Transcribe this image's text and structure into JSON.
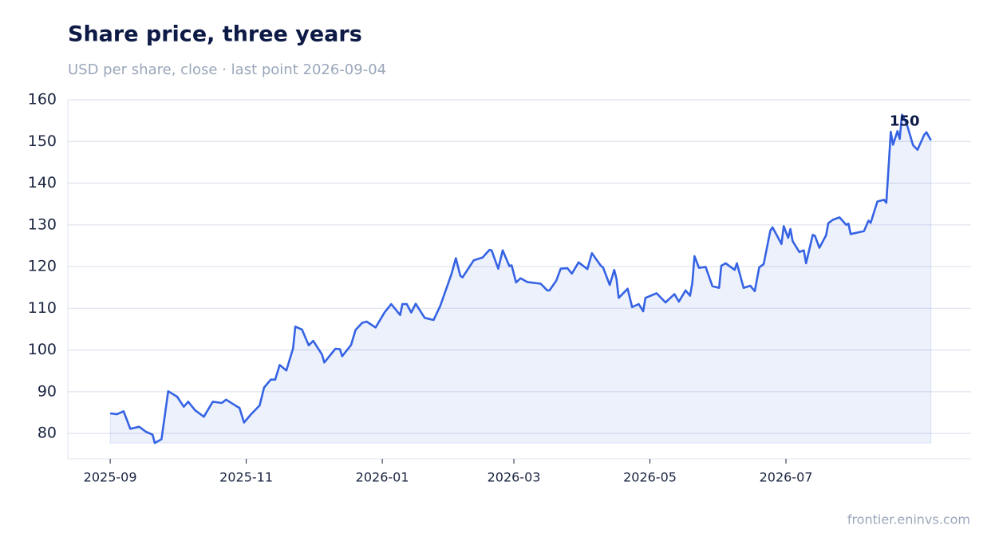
{
  "chart_data": {
    "type": "line",
    "title": "Share price, three years",
    "subtitle": "USD per share, close · last point 2026-09-04",
    "footer": "frontier.eninvs.com",
    "x": [
      "2025-09-01",
      "2025-09-04",
      "2025-09-07",
      "2025-09-10",
      "2025-09-14",
      "2025-09-17",
      "2025-09-20",
      "2025-09-21",
      "2025-09-24",
      "2025-09-27",
      "2025-10-01",
      "2025-10-04",
      "2025-10-06",
      "2025-10-09",
      "2025-10-13",
      "2025-10-17",
      "2025-10-21",
      "2025-10-23",
      "2025-10-28",
      "2025-10-29",
      "2025-10-31",
      "2025-11-03",
      "2025-11-07",
      "2025-11-09",
      "2025-11-12",
      "2025-11-14",
      "2025-11-16",
      "2025-11-19",
      "2025-11-22",
      "2025-11-23",
      "2025-11-26",
      "2025-11-29",
      "2025-12-01",
      "2025-12-05",
      "2025-12-06",
      "2025-12-11",
      "2025-12-13",
      "2025-12-14",
      "2025-12-18",
      "2025-12-20",
      "2025-12-23",
      "2025-12-25",
      "2025-12-29",
      "2026-01-02",
      "2026-01-05",
      "2026-01-09",
      "2026-01-10",
      "2026-01-12",
      "2026-01-14",
      "2026-01-16",
      "2026-01-20",
      "2026-01-24",
      "2026-01-27",
      "2026-02-01",
      "2026-02-03",
      "2026-02-05",
      "2026-02-06",
      "2026-02-11",
      "2026-02-15",
      "2026-02-18",
      "2026-02-19",
      "2026-02-22",
      "2026-02-24",
      "2026-02-27",
      "2026-02-28",
      "2026-03-02",
      "2026-03-04",
      "2026-03-07",
      "2026-03-13",
      "2026-03-16",
      "2026-03-17",
      "2026-03-20",
      "2026-03-22",
      "2026-03-25",
      "2026-03-27",
      "2026-03-30",
      "2026-04-03",
      "2026-04-05",
      "2026-04-09",
      "2026-04-10",
      "2026-04-13",
      "2026-04-15",
      "2026-04-16",
      "2026-04-17",
      "2026-04-21",
      "2026-04-23",
      "2026-04-26",
      "2026-04-28",
      "2026-04-29",
      "2026-05-04",
      "2026-05-08",
      "2026-05-12",
      "2026-05-14",
      "2026-05-17",
      "2026-05-19",
      "2026-05-20",
      "2026-05-21",
      "2026-05-23",
      "2026-05-26",
      "2026-05-29",
      "2026-06-01",
      "2026-06-02",
      "2026-06-04",
      "2026-06-08",
      "2026-06-09",
      "2026-06-12",
      "2026-06-15",
      "2026-06-17",
      "2026-06-19",
      "2026-06-21",
      "2026-06-24",
      "2026-06-25",
      "2026-06-29",
      "2026-06-30",
      "2026-07-02",
      "2026-07-03",
      "2026-07-04",
      "2026-07-07",
      "2026-07-09",
      "2026-07-10",
      "2026-07-13",
      "2026-07-14",
      "2026-07-16",
      "2026-07-19",
      "2026-07-20",
      "2026-07-22",
      "2026-07-25",
      "2026-07-28",
      "2026-07-29",
      "2026-07-30",
      "2026-08-05",
      "2026-08-07",
      "2026-08-08",
      "2026-08-11",
      "2026-08-14",
      "2026-08-15",
      "2026-08-17",
      "2026-08-18",
      "2026-08-20",
      "2026-08-21",
      "2026-08-22",
      "2026-08-24",
      "2026-08-27",
      "2026-08-29",
      "2026-09-01",
      "2026-09-02",
      "2026-09-04"
    ],
    "values": [
      84.8,
      84.6,
      85.3,
      81.1,
      81.6,
      80.4,
      79.7,
      77.7,
      78.6,
      90.1,
      88.8,
      86.4,
      87.6,
      85.6,
      84.0,
      87.6,
      87.3,
      88.1,
      86.4,
      86.1,
      82.6,
      84.5,
      86.7,
      91.0,
      92.9,
      92.9,
      96.4,
      95.1,
      100.4,
      105.6,
      104.9,
      101.1,
      102.2,
      98.9,
      97.0,
      100.3,
      100.2,
      98.5,
      101.2,
      104.8,
      106.5,
      106.8,
      105.4,
      109.0,
      111.0,
      108.4,
      111.0,
      111.0,
      109.0,
      111.1,
      107.7,
      107.2,
      110.6,
      118.2,
      122.0,
      117.8,
      117.4,
      121.5,
      122.2,
      124.0,
      123.9,
      119.5,
      123.9,
      120.1,
      120.3,
      116.2,
      117.2,
      116.3,
      115.9,
      114.3,
      114.3,
      116.6,
      119.5,
      119.6,
      118.3,
      121.0,
      119.4,
      123.2,
      120.2,
      119.8,
      115.6,
      119.2,
      117.1,
      112.5,
      114.7,
      110.3,
      111.0,
      109.3,
      112.5,
      113.6,
      111.4,
      113.4,
      111.6,
      114.3,
      113.0,
      116.0,
      122.5,
      119.7,
      119.9,
      115.3,
      114.9,
      120.2,
      120.8,
      119.2,
      120.8,
      114.9,
      115.4,
      114.1,
      119.8,
      120.6,
      128.6,
      129.4,
      125.4,
      129.7,
      126.9,
      129.0,
      126.1,
      123.5,
      123.9,
      120.8,
      127.6,
      127.4,
      124.5,
      127.5,
      130.4,
      131.2,
      131.8,
      130.0,
      130.3,
      127.8,
      128.5,
      131.0,
      130.5,
      135.6,
      136.0,
      135.3,
      152.3,
      149.2,
      152.5,
      150.6,
      156.4,
      154.5,
      149.1,
      148.0,
      151.6,
      152.2,
      150.3
    ],
    "last_label": "150",
    "color": "#3563e3",
    "xlim": [
      "2025-08-13",
      "2026-09-22"
    ],
    "xticks": [
      {
        "value": "2025-09-01",
        "label": "2025-09"
      },
      {
        "value": "2025-11-01",
        "label": "2025-11"
      },
      {
        "value": "2026-01-01",
        "label": "2026-01"
      },
      {
        "value": "2026-03-01",
        "label": "2026-03"
      },
      {
        "value": "2026-05-01",
        "label": "2026-05"
      },
      {
        "value": "2026-07-01",
        "label": "2026-07"
      }
    ],
    "ylim": [
      73.9,
      160
    ],
    "yticks": [
      80,
      90,
      100,
      110,
      120,
      130,
      140,
      150,
      160
    ],
    "grid": true
  }
}
